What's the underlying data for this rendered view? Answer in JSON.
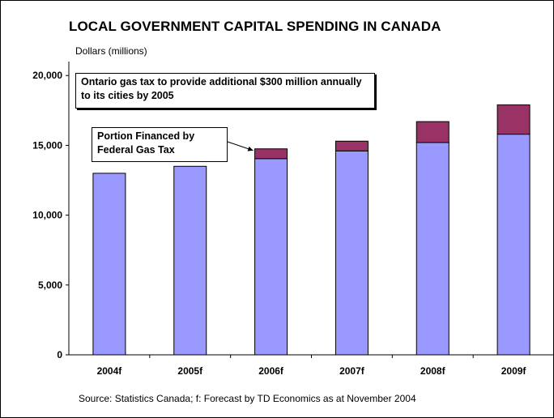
{
  "chart_data": {
    "type": "bar",
    "stacked": true,
    "title": "LOCAL GOVERNMENT CAPITAL SPENDING IN CANADA",
    "ylabel": "Dollars (millions)",
    "xlabel": "",
    "ylim": [
      0,
      21000
    ],
    "yticks": [
      0,
      5000,
      10000,
      15000,
      20000
    ],
    "ytick_labels": [
      "0",
      "5,000",
      "10,000",
      "15,000",
      "20,000"
    ],
    "categories": [
      "2004f",
      "2005f",
      "2006f",
      "2007f",
      "2008f",
      "2009f"
    ],
    "series": [
      {
        "values": [
          13000,
          13500,
          14050,
          14600,
          15200,
          15800
        ],
        "color": "#9999ff"
      },
      {
        "name": "Portion Financed by Federal Gas Tax",
        "values": [
          0,
          0,
          700,
          700,
          1500,
          2100
        ],
        "color": "#993366"
      }
    ],
    "annotations": [
      "Ontario gas tax to provide additional $300 million annually to its cities by 2005",
      "Portion Financed by Federal Gas Tax"
    ],
    "source": "Source:  Statistics Canada;  f: Forecast by TD Economics as at November 2004",
    "grid": false
  }
}
